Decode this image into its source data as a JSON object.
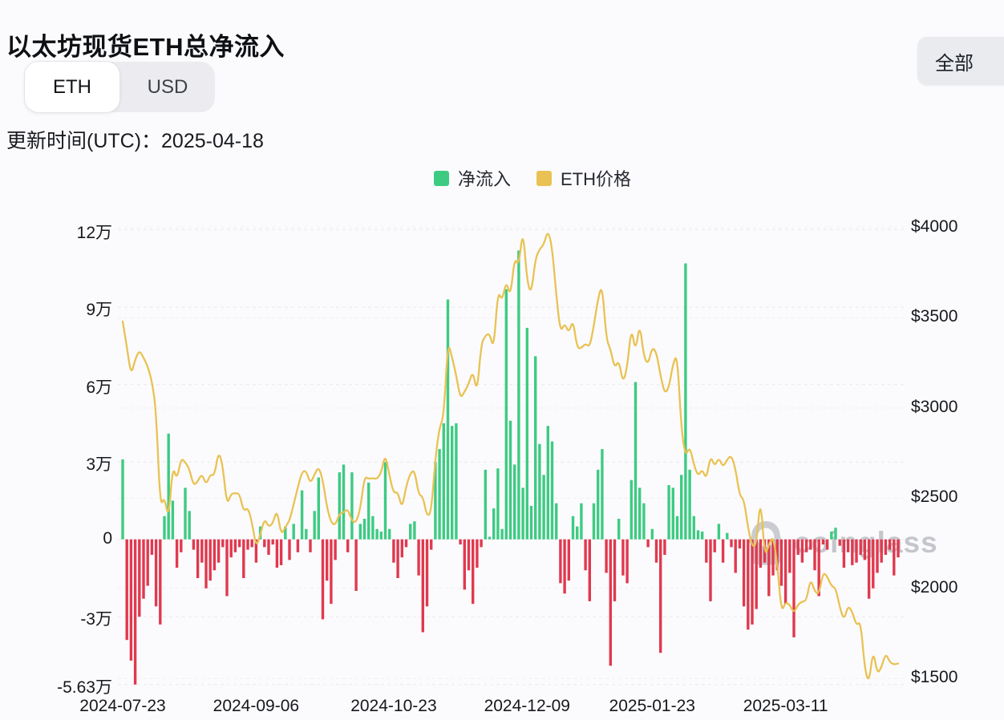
{
  "title": "以太坊现货ETH总净流入",
  "toggle": {
    "options": [
      "ETH",
      "USD"
    ],
    "selected": "ETH"
  },
  "range_button": "全部",
  "updated": "更新时间(UTC)：2025-04-18",
  "watermark": "coinglass",
  "legend": [
    {
      "label": "净流入",
      "color": "#3dcb82"
    },
    {
      "label": "ETH价格",
      "color": "#e9c253"
    }
  ],
  "colors": {
    "inflow_green": "#3dcb82",
    "outflow_red": "#e0394e",
    "price_yellow": "#e9c253",
    "grid": "#e9eaee",
    "grid_right": "#efeff3"
  },
  "axes": {
    "left_ticks": [
      "12万",
      "9万",
      "6万",
      "3万",
      "0",
      "-3万",
      "-5.63万"
    ],
    "left_values": [
      12,
      9,
      6,
      3,
      0,
      -3,
      -5.63
    ],
    "right_ticks": [
      "$4000",
      "$3500",
      "$3000",
      "$2500",
      "$2000",
      "$1500"
    ],
    "right_values": [
      4000,
      3500,
      3000,
      2500,
      2000,
      1500
    ],
    "x_ticks": [
      "2024-07-23",
      "2024-09-06",
      "2024-10-23",
      "2024-12-09",
      "2025-01-23",
      "2025-03-11"
    ]
  },
  "chart_data": {
    "type": "bar+line",
    "title": "以太坊现货ETH总净流入",
    "bar_series": "净流入",
    "line_series": "ETH价格",
    "flow_unit": "万 ETH (10k ETH)",
    "price_unit": "USD",
    "ylim_left": [
      -5.63,
      12
    ],
    "ylim_right": [
      1500,
      4000
    ],
    "grid": "dashed",
    "legend_position": "top-center",
    "columns": [
      "date",
      "net_flow_wan_eth",
      "eth_price_usd"
    ],
    "days": [
      [
        "2024-07-23",
        3.1,
        3480
      ],
      [
        "2024-07-24",
        -3.9,
        3340
      ],
      [
        "2024-07-25",
        -4.7,
        3180
      ],
      [
        "2024-07-26",
        -5.63,
        3270
      ],
      [
        "2024-07-29",
        -3.0,
        3320
      ],
      [
        "2024-07-30",
        -2.3,
        3280
      ],
      [
        "2024-07-31",
        -1.8,
        3230
      ],
      [
        "2024-08-01",
        -0.6,
        3150
      ],
      [
        "2024-08-02",
        -2.6,
        2990
      ],
      [
        "2024-08-05",
        -3.3,
        2450
      ],
      [
        "2024-08-06",
        0.9,
        2510
      ],
      [
        "2024-08-07",
        4.1,
        2380
      ],
      [
        "2024-08-08",
        1.5,
        2681
      ],
      [
        "2024-08-09",
        -1.1,
        2600
      ],
      [
        "2024-08-12",
        -0.5,
        2722
      ],
      [
        "2024-08-13",
        2.0,
        2700
      ],
      [
        "2024-08-14",
        1.1,
        2661
      ],
      [
        "2024-08-15",
        -0.4,
        2569
      ],
      [
        "2024-08-16",
        -1.5,
        2593
      ],
      [
        "2024-08-19",
        -0.9,
        2636
      ],
      [
        "2024-08-20",
        -1.9,
        2573
      ],
      [
        "2024-08-21",
        -1.6,
        2632
      ],
      [
        "2024-08-22",
        -1.2,
        2624
      ],
      [
        "2024-08-23",
        -0.9,
        2762
      ],
      [
        "2024-08-26",
        -0.3,
        2680
      ],
      [
        "2024-08-27",
        -2.2,
        2459
      ],
      [
        "2024-08-28",
        -0.7,
        2526
      ],
      [
        "2024-08-29",
        -0.5,
        2527
      ],
      [
        "2024-08-30",
        -0.3,
        2526
      ],
      [
        "2024-09-03",
        -1.5,
        2425
      ],
      [
        "2024-09-04",
        -0.4,
        2450
      ],
      [
        "2024-09-05",
        -0.3,
        2368
      ],
      [
        "2024-09-06",
        -0.9,
        2226
      ],
      [
        "2024-09-09",
        0.5,
        2297
      ],
      [
        "2024-09-10",
        -0.3,
        2387
      ],
      [
        "2024-09-11",
        -0.6,
        2340
      ],
      [
        "2024-09-12",
        -0.2,
        2360
      ],
      [
        "2024-09-13",
        -1.1,
        2439
      ],
      [
        "2024-09-16",
        -1.0,
        2295
      ],
      [
        "2024-09-17",
        0.5,
        2340
      ],
      [
        "2024-09-18",
        -0.8,
        2375
      ],
      [
        "2024-09-19",
        0.6,
        2465
      ],
      [
        "2024-09-20",
        -0.5,
        2561
      ],
      [
        "2024-09-23",
        1.9,
        2646
      ],
      [
        "2024-09-24",
        0.4,
        2653
      ],
      [
        "2024-09-25",
        -0.5,
        2580
      ],
      [
        "2024-09-26",
        1.1,
        2632
      ],
      [
        "2024-09-27",
        2.4,
        2675
      ],
      [
        "2024-09-30",
        -3.1,
        2602
      ],
      [
        "2024-10-01",
        -1.6,
        2450
      ],
      [
        "2024-10-02",
        -2.5,
        2364
      ],
      [
        "2024-10-03",
        -0.8,
        2350
      ],
      [
        "2024-10-04",
        2.6,
        2414
      ],
      [
        "2024-10-07",
        2.9,
        2421
      ],
      [
        "2024-10-08",
        -0.5,
        2441
      ],
      [
        "2024-10-09",
        2.6,
        2371
      ],
      [
        "2024-10-10",
        -2.0,
        2365
      ],
      [
        "2024-10-11",
        0.6,
        2440
      ],
      [
        "2024-10-14",
        0.8,
        2620
      ],
      [
        "2024-10-15",
        2.2,
        2607
      ],
      [
        "2024-10-16",
        0.9,
        2611
      ],
      [
        "2024-10-17",
        0.4,
        2606
      ],
      [
        "2024-10-18",
        0.3,
        2641
      ],
      [
        "2024-10-21",
        3.0,
        2747
      ],
      [
        "2024-10-22",
        0.4,
        2623
      ],
      [
        "2024-10-23",
        -0.9,
        2527
      ],
      [
        "2024-10-24",
        -1.5,
        2536
      ],
      [
        "2024-10-25",
        -0.7,
        2440
      ],
      [
        "2024-10-28",
        -0.3,
        2567
      ],
      [
        "2024-10-29",
        0.6,
        2638
      ],
      [
        "2024-10-30",
        0.7,
        2658
      ],
      [
        "2024-10-31",
        -1.4,
        2518
      ],
      [
        "2024-11-01",
        -3.6,
        2511
      ],
      [
        "2024-11-04",
        -2.6,
        2398
      ],
      [
        "2024-11-05",
        -0.4,
        2421
      ],
      [
        "2024-11-06",
        3.0,
        2721
      ],
      [
        "2024-11-07",
        3.5,
        2895
      ],
      [
        "2024-11-08",
        4.5,
        2949
      ],
      [
        "2024-11-11",
        9.3,
        3370
      ],
      [
        "2024-11-12",
        4.4,
        3282
      ],
      [
        "2024-11-13",
        4.5,
        3182
      ],
      [
        "2024-11-14",
        -0.2,
        3051
      ],
      [
        "2024-11-15",
        -1.95,
        3090
      ],
      [
        "2024-11-18",
        -1.2,
        3134
      ],
      [
        "2024-11-19",
        -2.5,
        3207
      ],
      [
        "2024-11-20",
        -1.1,
        3081
      ],
      [
        "2024-11-21",
        -0.3,
        3356
      ],
      [
        "2024-11-22",
        2.7,
        3402
      ],
      [
        "2024-11-25",
        0.1,
        3414
      ],
      [
        "2024-11-26",
        1.2,
        3324
      ],
      [
        "2024-11-27",
        2.75,
        3653
      ],
      [
        "2024-11-29",
        0.4,
        3592
      ],
      [
        "2024-12-02",
        9.7,
        3707
      ],
      [
        "2024-12-03",
        4.6,
        3614
      ],
      [
        "2024-12-04",
        2.9,
        3837
      ],
      [
        "2024-12-05",
        11.2,
        3785
      ],
      [
        "2024-12-06",
        2.0,
        3998
      ],
      [
        "2024-12-09",
        8.2,
        3702
      ],
      [
        "2024-12-10",
        1.3,
        3631
      ],
      [
        "2024-12-11",
        7.1,
        3829
      ],
      [
        "2024-12-12",
        3.7,
        3881
      ],
      [
        "2024-12-13",
        2.5,
        3906
      ],
      [
        "2024-12-16",
        4.4,
        3988
      ],
      [
        "2024-12-17",
        3.8,
        3892
      ],
      [
        "2024-12-18",
        1.4,
        3626
      ],
      [
        "2024-12-19",
        -1.7,
        3417
      ],
      [
        "2024-12-20",
        -2.1,
        3472
      ],
      [
        "2024-12-23",
        -1.6,
        3415
      ],
      [
        "2024-12-24",
        0.9,
        3492
      ],
      [
        "2024-12-26",
        0.5,
        3331
      ],
      [
        "2024-12-27",
        1.4,
        3332
      ],
      [
        "2024-12-30",
        -1.2,
        3358
      ],
      [
        "2024-12-31",
        -2.4,
        3337
      ],
      [
        "2025-01-02",
        1.4,
        3455
      ],
      [
        "2025-01-03",
        2.7,
        3606
      ],
      [
        "2025-01-06",
        3.5,
        3687
      ],
      [
        "2025-01-07",
        -1.3,
        3381
      ],
      [
        "2025-01-08",
        -4.9,
        3327
      ],
      [
        "2025-01-09",
        -2.4,
        3219
      ],
      [
        "2025-01-10",
        0.8,
        3267
      ],
      [
        "2025-01-13",
        -1.4,
        3137
      ],
      [
        "2025-01-14",
        -1.7,
        3225
      ],
      [
        "2025-01-15",
        2.3,
        3451
      ],
      [
        "2025-01-16",
        6.1,
        3309
      ],
      [
        "2025-01-17",
        2.0,
        3473
      ],
      [
        "2025-01-21",
        1.4,
        3285
      ],
      [
        "2025-01-22",
        -0.3,
        3240
      ],
      [
        "2025-01-23",
        0.4,
        3338
      ],
      [
        "2025-01-24",
        -0.9,
        3310
      ],
      [
        "2025-01-27",
        -4.4,
        3180
      ],
      [
        "2025-01-28",
        -0.6,
        3078
      ],
      [
        "2025-01-29",
        2.1,
        3113
      ],
      [
        "2025-01-30",
        2.0,
        3247
      ],
      [
        "2025-01-31",
        0.9,
        3300
      ],
      [
        "2025-02-03",
        2.5,
        2879
      ],
      [
        "2025-02-04",
        10.7,
        2731
      ],
      [
        "2025-02-05",
        2.7,
        2788
      ],
      [
        "2025-02-06",
        0.9,
        2686
      ],
      [
        "2025-02-07",
        0.35,
        2622
      ],
      [
        "2025-02-10",
        0.3,
        2661
      ],
      [
        "2025-02-11",
        -0.9,
        2603
      ],
      [
        "2025-02-12",
        -2.4,
        2738
      ],
      [
        "2025-02-13",
        -0.5,
        2675
      ],
      [
        "2025-02-14",
        0.6,
        2726
      ],
      [
        "2025-02-18",
        -0.9,
        2671
      ],
      [
        "2025-02-19",
        0.25,
        2715
      ],
      [
        "2025-02-20",
        -0.3,
        2738
      ],
      [
        "2025-02-21",
        -1.3,
        2662
      ],
      [
        "2025-02-24",
        -0.35,
        2513
      ],
      [
        "2025-02-25",
        -2.6,
        2495
      ],
      [
        "2025-02-26",
        -3.5,
        2336
      ],
      [
        "2025-02-27",
        -3.3,
        2230
      ],
      [
        "2025-02-28",
        -2.7,
        2238
      ],
      [
        "2025-03-03",
        -1.1,
        2515
      ],
      [
        "2025-03-04",
        -0.9,
        2172
      ],
      [
        "2025-03-05",
        -2.2,
        2242
      ],
      [
        "2025-03-06",
        -1.4,
        2293
      ],
      [
        "2025-03-07",
        -1.2,
        2141
      ],
      [
        "2025-03-10",
        -1.8,
        1866
      ],
      [
        "2025-03-11",
        -2.5,
        1924
      ],
      [
        "2025-03-12",
        -1.3,
        1908
      ],
      [
        "2025-03-13",
        -3.8,
        1863
      ],
      [
        "2025-03-14",
        -0.6,
        1911
      ],
      [
        "2025-03-17",
        -0.9,
        1927
      ],
      [
        "2025-03-18",
        -0.5,
        1931
      ],
      [
        "2025-03-19",
        -0.4,
        2056
      ],
      [
        "2025-03-20",
        -1.2,
        1982
      ],
      [
        "2025-03-21",
        -2.2,
        1966
      ],
      [
        "2025-03-24",
        -0.2,
        2090
      ],
      [
        "2025-03-25",
        -0.4,
        2066
      ],
      [
        "2025-03-26",
        0.3,
        2012
      ],
      [
        "2025-03-27",
        0.45,
        2003
      ],
      [
        "2025-03-28",
        -0.25,
        1896
      ],
      [
        "2025-03-31",
        -1.1,
        1822
      ],
      [
        "2025-04-01",
        -0.5,
        1905
      ],
      [
        "2025-04-02",
        -1.0,
        1870
      ],
      [
        "2025-04-03",
        -0.9,
        1793
      ],
      [
        "2025-04-04",
        -0.6,
        1818
      ],
      [
        "2025-04-07",
        -0.8,
        1553
      ],
      [
        "2025-04-08",
        -2.3,
        1472
      ],
      [
        "2025-04-09",
        -1.9,
        1661
      ],
      [
        "2025-04-10",
        -1.3,
        1524
      ],
      [
        "2025-04-11",
        -0.9,
        1561
      ],
      [
        "2025-04-14",
        -0.6,
        1641
      ],
      [
        "2025-04-15",
        -0.4,
        1590
      ],
      [
        "2025-04-16",
        -1.4,
        1577
      ],
      [
        "2025-04-17",
        -0.7,
        1583
      ]
    ]
  }
}
